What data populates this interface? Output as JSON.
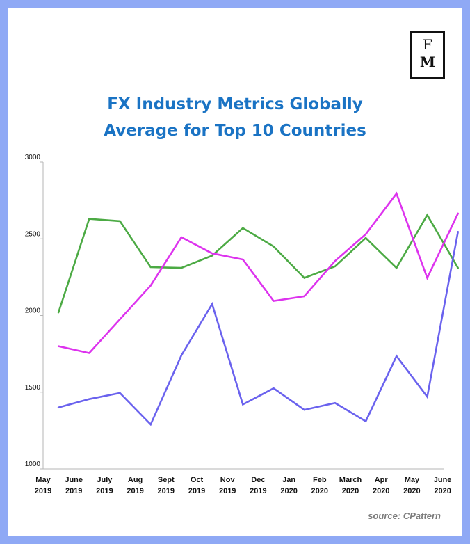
{
  "brand": {
    "logo_top": "F",
    "logo_bottom": "M"
  },
  "title_lines": [
    "FX Industry Metrics Globally",
    "Average for Top 10 Countries"
  ],
  "source": "source: CPattern",
  "chart_data": {
    "type": "line",
    "title": "FX Industry Metrics Globally Average for Top 10 Countries",
    "categories": [
      {
        "month": "May",
        "year": "2019"
      },
      {
        "month": "June",
        "year": "2019"
      },
      {
        "month": "July",
        "year": "2019"
      },
      {
        "month": "Aug",
        "year": "2019"
      },
      {
        "month": "Sept",
        "year": "2019"
      },
      {
        "month": "Oct",
        "year": "2019"
      },
      {
        "month": "Nov",
        "year": "2019"
      },
      {
        "month": "Dec",
        "year": "2019"
      },
      {
        "month": "Jan",
        "year": "2020"
      },
      {
        "month": "Feb",
        "year": "2020"
      },
      {
        "month": "March",
        "year": "2020"
      },
      {
        "month": "Apr",
        "year": "2020"
      },
      {
        "month": "May",
        "year": "2020"
      },
      {
        "month": "June",
        "year": "2020"
      }
    ],
    "ylim": [
      1000,
      3000
    ],
    "yticks": [
      1000,
      1500,
      2000,
      2500,
      3000
    ],
    "grid": false,
    "legend": "none",
    "series": [
      {
        "color": "#4caa44",
        "x": [
          0.5,
          1.5,
          2.5,
          3.5,
          4.5,
          5.5,
          6.5,
          7.5,
          8.5,
          9.5,
          10.5,
          11.5,
          12.5,
          13.5
        ],
        "values": [
          2020,
          2630,
          2615,
          2315,
          2310,
          2390,
          2570,
          2450,
          2245,
          2320,
          2505,
          2310,
          2655,
          2310
        ]
      },
      {
        "color": "#dd33ee",
        "x": [
          0.5,
          1.5,
          3.5,
          4.5,
          5.5,
          6.5,
          7.5,
          8.5,
          9.5,
          10.5,
          11.5,
          12.5,
          13.5
        ],
        "values": [
          1800,
          1755,
          2195,
          2510,
          2405,
          2365,
          2095,
          2125,
          2355,
          2530,
          2795,
          2245,
          2665
        ]
      },
      {
        "color": "#6a62ee",
        "x": [
          0.5,
          1.5,
          2.5,
          3.5,
          4.5,
          5.5,
          6.5,
          7.5,
          8.5,
          9.5,
          10.5,
          11.5,
          12.5,
          13.5
        ],
        "values": [
          1400,
          1455,
          1495,
          1290,
          1740,
          2075,
          1420,
          1525,
          1385,
          1430,
          1310,
          1735,
          1470,
          2545
        ]
      }
    ]
  }
}
